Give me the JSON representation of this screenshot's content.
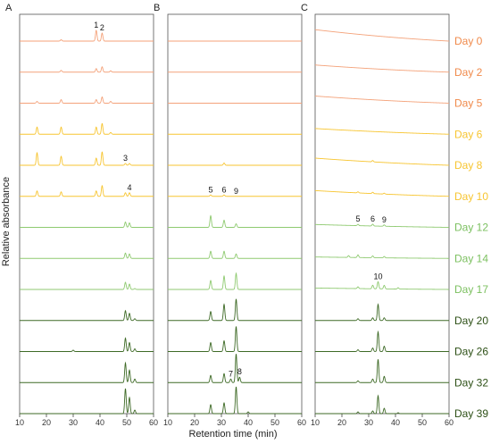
{
  "chart_data": {
    "type": "line",
    "xlabel": "Retention time (min)",
    "ylabel": "Relative absorbance",
    "xlim": [
      10,
      60
    ],
    "xticks": [
      "10",
      "20",
      "30",
      "40",
      "50",
      "60"
    ],
    "panels": [
      "A",
      "B",
      "C"
    ],
    "days": [
      "Day 0",
      "Day 2",
      "Day 5",
      "Day 6",
      "Day 8",
      "Day 10",
      "Day 12",
      "Day 14",
      "Day 17",
      "Day 20",
      "Day 26",
      "Day 32",
      "Day 39"
    ],
    "day_colors": [
      "#f08a4b",
      "#f08a4b",
      "#f08a4b",
      "#f7c531",
      "#f7c531",
      "#f7c531",
      "#7cc060",
      "#7cc060",
      "#7cc060",
      "#2d5016",
      "#2d5016",
      "#2d5016",
      "#2d5016"
    ],
    "trace_colors": [
      "#f4a27a",
      "#f4a27a",
      "#f4a27a",
      "#f7c531",
      "#f7c531",
      "#f7c531",
      "#8fca70",
      "#8fca70",
      "#8fca70",
      "#3e6a26",
      "#3e6a26",
      "#3e6a26",
      "#3e6a26"
    ],
    "peak_labels": [
      {
        "panel": 0,
        "row": 0,
        "x": 38.6,
        "text": "1"
      },
      {
        "panel": 0,
        "row": 0,
        "x": 40.8,
        "text": "2"
      },
      {
        "panel": 0,
        "row": 4,
        "x": 49.5,
        "text": "3"
      },
      {
        "panel": 0,
        "row": 5,
        "x": 51.0,
        "text": "4"
      },
      {
        "panel": 1,
        "row": 5,
        "x": 26.0,
        "text": "5"
      },
      {
        "panel": 1,
        "row": 5,
        "x": 31.0,
        "text": "6"
      },
      {
        "panel": 1,
        "row": 5,
        "x": 35.5,
        "text": "9"
      },
      {
        "panel": 1,
        "row": 11,
        "x": 33.5,
        "text": "7"
      },
      {
        "panel": 1,
        "row": 11,
        "x": 36.8,
        "text": "8"
      },
      {
        "panel": 2,
        "row": 6,
        "x": 26.0,
        "text": "5"
      },
      {
        "panel": 2,
        "row": 6,
        "x": 31.5,
        "text": "6"
      },
      {
        "panel": 2,
        "row": 6,
        "x": 35.8,
        "text": "9"
      },
      {
        "panel": 2,
        "row": 8,
        "x": 33.5,
        "text": "10"
      }
    ],
    "series": [
      {
        "panel": 0,
        "day": "Day 0",
        "baseline_slope": 0,
        "peaks": [
          [
            38.6,
            12
          ],
          [
            40.8,
            9
          ],
          [
            25.5,
            1.5
          ]
        ]
      },
      {
        "panel": 0,
        "day": "Day 2",
        "baseline_slope": 0,
        "peaks": [
          [
            25.5,
            2
          ],
          [
            38.6,
            4
          ],
          [
            40.8,
            6
          ],
          [
            44,
            1.5
          ]
        ]
      },
      {
        "panel": 0,
        "day": "Day 5",
        "baseline_slope": 0,
        "peaks": [
          [
            16.5,
            2
          ],
          [
            25.5,
            4
          ],
          [
            38.6,
            4
          ],
          [
            40.8,
            7
          ],
          [
            44,
            2
          ]
        ]
      },
      {
        "panel": 0,
        "day": "Day 6",
        "baseline_slope": 0,
        "peaks": [
          [
            16.5,
            8
          ],
          [
            25.5,
            8
          ],
          [
            38.6,
            8
          ],
          [
            40.8,
            12
          ],
          [
            44,
            2
          ]
        ]
      },
      {
        "panel": 0,
        "day": "Day 8",
        "baseline_slope": 0,
        "peaks": [
          [
            16.5,
            14
          ],
          [
            25.5,
            10
          ],
          [
            38.6,
            8
          ],
          [
            40.8,
            15
          ],
          [
            49.5,
            2
          ],
          [
            51,
            2
          ]
        ]
      },
      {
        "panel": 0,
        "day": "Day 10",
        "baseline_slope": 0,
        "peaks": [
          [
            16.5,
            6
          ],
          [
            25.5,
            5
          ],
          [
            38.6,
            6
          ],
          [
            40.8,
            12
          ],
          [
            49.5,
            4
          ],
          [
            51,
            4
          ]
        ]
      },
      {
        "panel": 0,
        "day": "Day 12",
        "baseline_slope": 0,
        "peaks": [
          [
            49.5,
            6
          ],
          [
            51,
            5
          ]
        ]
      },
      {
        "panel": 0,
        "day": "Day 14",
        "baseline_slope": 0,
        "peaks": [
          [
            49.5,
            6
          ],
          [
            51,
            5
          ]
        ]
      },
      {
        "panel": 0,
        "day": "Day 17",
        "baseline_slope": 0,
        "peaks": [
          [
            49.5,
            8
          ],
          [
            51,
            6
          ],
          [
            53,
            1
          ]
        ]
      },
      {
        "panel": 0,
        "day": "Day 20",
        "baseline_slope": 0,
        "peaks": [
          [
            49.5,
            11
          ],
          [
            51,
            8
          ],
          [
            53,
            2
          ]
        ]
      },
      {
        "panel": 0,
        "day": "Day 26",
        "baseline_slope": 0,
        "peaks": [
          [
            30,
            1.5
          ],
          [
            49.5,
            15
          ],
          [
            51,
            10
          ],
          [
            53,
            3
          ]
        ]
      },
      {
        "panel": 0,
        "day": "Day 32",
        "baseline_slope": 0,
        "peaks": [
          [
            49.5,
            22
          ],
          [
            51,
            14
          ],
          [
            53,
            4
          ]
        ]
      },
      {
        "panel": 0,
        "day": "Day 39",
        "baseline_slope": 0,
        "peaks": [
          [
            49.5,
            28
          ],
          [
            51,
            18
          ],
          [
            53,
            4
          ]
        ]
      },
      {
        "panel": 1,
        "day": "Day 0",
        "baseline_slope": 0,
        "peaks": []
      },
      {
        "panel": 1,
        "day": "Day 2",
        "baseline_slope": 0,
        "peaks": []
      },
      {
        "panel": 1,
        "day": "Day 5",
        "baseline_slope": 0,
        "peaks": []
      },
      {
        "panel": 1,
        "day": "Day 6",
        "baseline_slope": 0,
        "peaks": []
      },
      {
        "panel": 1,
        "day": "Day 8",
        "baseline_slope": 0,
        "peaks": [
          [
            31,
            2.5
          ]
        ]
      },
      {
        "panel": 1,
        "day": "Day 10",
        "baseline_slope": 0,
        "peaks": [
          [
            26,
            1.5
          ],
          [
            31,
            1.5
          ]
        ]
      },
      {
        "panel": 1,
        "day": "Day 12",
        "baseline_slope": 0,
        "peaks": [
          [
            26,
            13
          ],
          [
            31,
            8
          ],
          [
            35.5,
            4
          ]
        ]
      },
      {
        "panel": 1,
        "day": "Day 14",
        "baseline_slope": 0,
        "peaks": [
          [
            26,
            8
          ],
          [
            31,
            8
          ],
          [
            35.5,
            5
          ]
        ]
      },
      {
        "panel": 1,
        "day": "Day 17",
        "baseline_slope": 0,
        "peaks": [
          [
            26,
            10
          ],
          [
            31,
            15
          ],
          [
            35.5,
            18
          ]
        ]
      },
      {
        "panel": 1,
        "day": "Day 20",
        "baseline_slope": 0,
        "peaks": [
          [
            26,
            10
          ],
          [
            31,
            18
          ],
          [
            35.5,
            24
          ]
        ]
      },
      {
        "panel": 1,
        "day": "Day 26",
        "baseline_slope": 0,
        "peaks": [
          [
            26,
            10
          ],
          [
            31,
            12
          ],
          [
            35.5,
            28
          ]
        ]
      },
      {
        "panel": 1,
        "day": "Day 32",
        "baseline_slope": 0,
        "peaks": [
          [
            26,
            8
          ],
          [
            31,
            10
          ],
          [
            33.5,
            4
          ],
          [
            35.5,
            32
          ],
          [
            36.8,
            6
          ]
        ]
      },
      {
        "panel": 1,
        "day": "Day 39",
        "baseline_slope": 0,
        "peaks": [
          [
            26,
            10
          ],
          [
            31,
            12
          ],
          [
            35.5,
            30
          ],
          [
            40,
            2
          ]
        ]
      },
      {
        "panel": 2,
        "day": "Day 0",
        "baseline_slope": 8,
        "peaks": []
      },
      {
        "panel": 2,
        "day": "Day 2",
        "baseline_slope": 5,
        "peaks": []
      },
      {
        "panel": 2,
        "day": "Day 5",
        "baseline_slope": 5,
        "peaks": []
      },
      {
        "panel": 2,
        "day": "Day 6",
        "baseline_slope": 4,
        "peaks": []
      },
      {
        "panel": 2,
        "day": "Day 8",
        "baseline_slope": 5,
        "peaks": [
          [
            31.5,
            1.5
          ]
        ]
      },
      {
        "panel": 2,
        "day": "Day 10",
        "baseline_slope": 4,
        "peaks": [
          [
            26,
            1.2
          ],
          [
            31.5,
            1.5
          ],
          [
            35.8,
            1
          ]
        ]
      },
      {
        "panel": 2,
        "day": "Day 12",
        "baseline_slope": 2,
        "peaks": [
          [
            26,
            1.5
          ],
          [
            31.5,
            2
          ],
          [
            35.8,
            1.5
          ]
        ]
      },
      {
        "panel": 2,
        "day": "Day 14",
        "baseline_slope": 1,
        "peaks": [
          [
            22.5,
            2
          ],
          [
            26,
            3
          ],
          [
            31.5,
            2
          ],
          [
            35.8,
            1.5
          ]
        ]
      },
      {
        "panel": 2,
        "day": "Day 17",
        "baseline_slope": 1,
        "peaks": [
          [
            26,
            2
          ],
          [
            31.5,
            4
          ],
          [
            33.5,
            8
          ],
          [
            35.8,
            4
          ],
          [
            41,
            1.5
          ]
        ]
      },
      {
        "panel": 2,
        "day": "Day 20",
        "baseline_slope": 0,
        "peaks": [
          [
            26,
            2
          ],
          [
            31.5,
            3
          ],
          [
            33.5,
            18
          ],
          [
            35.8,
            3
          ]
        ]
      },
      {
        "panel": 2,
        "day": "Day 26",
        "baseline_slope": 0,
        "peaks": [
          [
            26,
            2
          ],
          [
            31.5,
            4
          ],
          [
            33.5,
            22
          ],
          [
            35.8,
            6
          ]
        ]
      },
      {
        "panel": 2,
        "day": "Day 32",
        "baseline_slope": 0,
        "peaks": [
          [
            26,
            2
          ],
          [
            31.5,
            4
          ],
          [
            33.5,
            26
          ],
          [
            35.8,
            7
          ]
        ]
      },
      {
        "panel": 2,
        "day": "Day 39",
        "baseline_slope": 0,
        "peaks": [
          [
            26,
            2
          ],
          [
            31.5,
            3
          ],
          [
            33.5,
            20
          ],
          [
            35.8,
            6
          ],
          [
            41,
            1
          ]
        ]
      }
    ]
  }
}
